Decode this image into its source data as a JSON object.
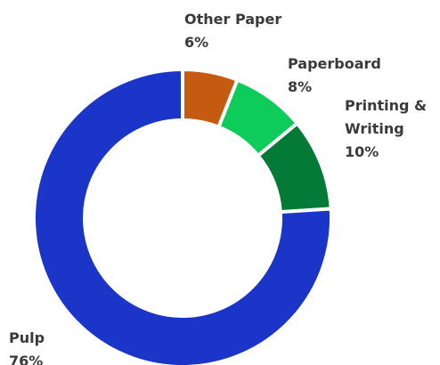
{
  "chart_data": {
    "type": "donut",
    "categories": [
      "Other Paper",
      "Paperboard",
      "Printing & Writing",
      "Pulp"
    ],
    "values": [
      6,
      8,
      10,
      76
    ],
    "value_labels": [
      "6%",
      "8%",
      "10%",
      "76%"
    ],
    "colors": [
      "#c55a11",
      "#0dcc5a",
      "#037a35",
      "#1a35c8"
    ]
  }
}
